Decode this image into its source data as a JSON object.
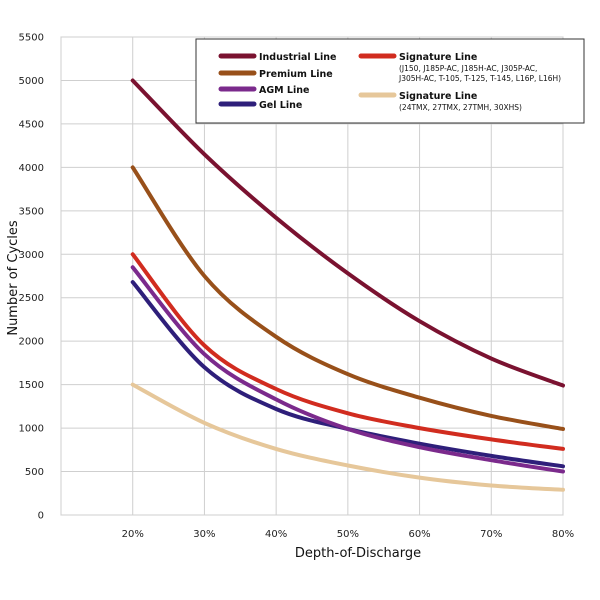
{
  "chart_data": {
    "type": "line",
    "title": "",
    "xlabel": "Depth-of-Discharge",
    "ylabel": "Number of Cycles",
    "x_ticks": [
      "20%",
      "30%",
      "40%",
      "50%",
      "60%",
      "70%",
      "80%"
    ],
    "y_ticks": [
      "0",
      "500",
      "1000",
      "1500",
      "2000",
      "2500",
      "3000",
      "3500",
      "4000",
      "4500",
      "5000",
      "5500"
    ],
    "xlim": [
      10,
      80
    ],
    "ylim": [
      0,
      5500
    ],
    "grid": true,
    "legend_position": "top-right",
    "x": [
      20,
      30,
      40,
      50,
      60,
      70,
      80
    ],
    "series": [
      {
        "name": "Industrial Line",
        "color": "#7a1230",
        "notes": [],
        "values": [
          5000,
          4150,
          3420,
          2780,
          2230,
          1800,
          1490
        ]
      },
      {
        "name": "Premium Line",
        "color": "#98501a",
        "notes": [],
        "values": [
          4000,
          2750,
          2050,
          1620,
          1350,
          1140,
          990
        ]
      },
      {
        "name": "AGM Line",
        "color": "#7b2a8c",
        "notes": [],
        "values": [
          2850,
          1850,
          1330,
          990,
          780,
          630,
          500
        ]
      },
      {
        "name": "Gel Line",
        "color": "#2e1f7a",
        "notes": [],
        "values": [
          2680,
          1700,
          1220,
          990,
          820,
          680,
          560
        ]
      },
      {
        "name": "Signature Line",
        "color": "#d12c1f",
        "notes": [
          "(J150, J185P-AC, J185H-AC, J305P-AC,",
          "J305H-AC, T-105, T-125, T-145, L16P, L16H)"
        ],
        "values": [
          3000,
          1950,
          1450,
          1170,
          1000,
          870,
          760
        ]
      },
      {
        "name": "Signature Line",
        "color": "#e6c79a",
        "notes": [
          "(24TMX, 27TMX, 27TMH, 30XHS)"
        ],
        "values": [
          1500,
          1060,
          760,
          570,
          430,
          340,
          290
        ]
      }
    ]
  }
}
